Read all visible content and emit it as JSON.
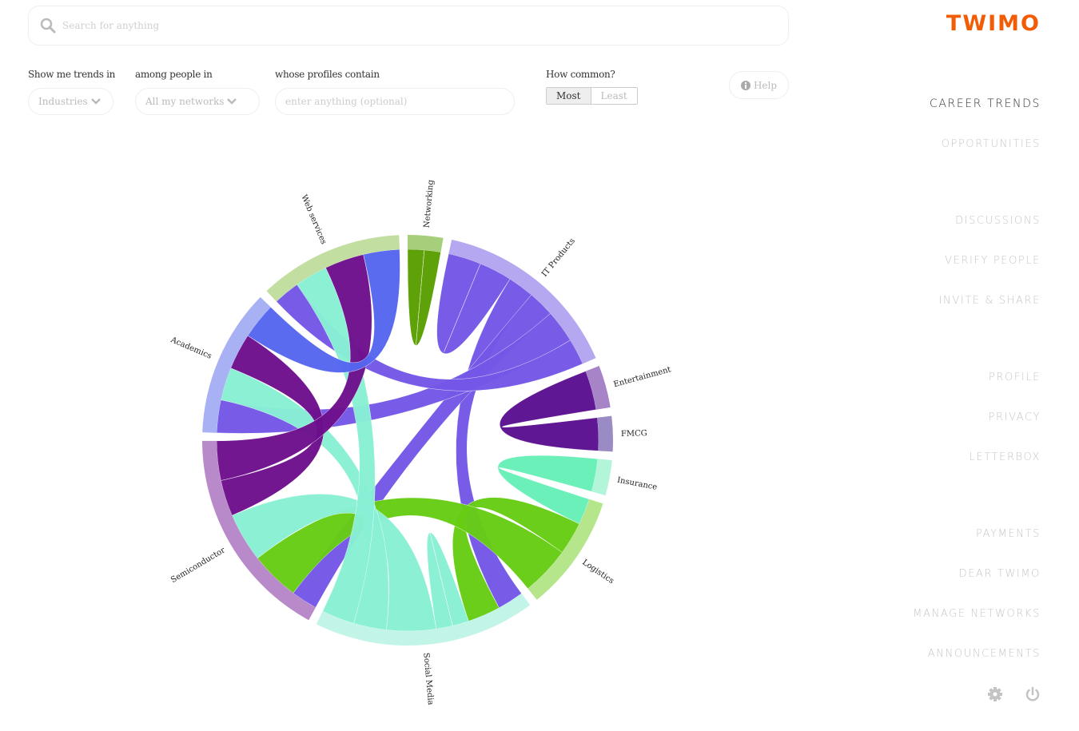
{
  "search": {
    "placeholder": "Search for anything",
    "icon": "search-icon"
  },
  "filters": {
    "trends_label": "Show me trends in",
    "trends_value": "Industries",
    "people_label": "among people in",
    "people_value": "All my networks",
    "profiles_label": "whose profiles contain",
    "profiles_placeholder": "enter anything (optional)",
    "common_label": "How common?",
    "common_options": [
      "Most",
      "Least"
    ],
    "common_selected": "Most",
    "help_label": "Help"
  },
  "brand": {
    "logo": "twimo",
    "color": "#f25c05"
  },
  "nav": {
    "items": [
      "career trends",
      "opportunities",
      "discussions",
      "verify people",
      "invite & share",
      "profile",
      "privacy",
      "letterbox",
      "payments",
      "dear twimo",
      "manage networks",
      "announcements"
    ],
    "active": "career trends"
  },
  "footer_icons": [
    "gear-icon",
    "power-icon"
  ],
  "chart_data": {
    "type": "chord",
    "groups": [
      {
        "name": "Networking",
        "value": 10,
        "color": "#5a9e00",
        "arc": "#a5cf7a"
      },
      {
        "name": "IT Products",
        "value": 54,
        "color": "#7457e6",
        "arc": "#b5a8f0"
      },
      {
        "name": "Entertainment",
        "value": 12,
        "color": "#5b0f8f",
        "arc": "#a783c7"
      },
      {
        "name": "FMCG",
        "value": 10,
        "color": "#5e0d8c",
        "arc": "#9a8bc4"
      },
      {
        "name": "Insurance",
        "value": 10,
        "color": "#66f0b8",
        "arc": "#b2f5d9"
      },
      {
        "name": "Logistics",
        "value": 33,
        "color": "#66cc14",
        "arc": "#b5e68c"
      },
      {
        "name": "Social Media",
        "value": 63,
        "color": "#88f0d4",
        "arc": "#c2f5e8"
      },
      {
        "name": "Semiconductor",
        "value": 61,
        "color": "#6d0f8c",
        "arc": "#b98ac9"
      },
      {
        "name": "Academics",
        "value": 42,
        "color": "#5566f0",
        "arc": "#a9b1f5"
      },
      {
        "name": "Web services",
        "value": 41,
        "color": "#5566f0",
        "arc": "#c2dea0"
      }
    ],
    "chords": [
      {
        "source": "Networking",
        "target": "Networking",
        "sv": 5,
        "tv": 5,
        "color": "#5a9e00"
      },
      {
        "source": "IT Products",
        "target": "IT Products",
        "sv": 10,
        "tv": 10,
        "color": "#7457e6"
      },
      {
        "source": "IT Products",
        "target": "Social Media",
        "sv": 8,
        "tv": 8,
        "color": "#7457e6"
      },
      {
        "source": "IT Products",
        "target": "Semiconductor",
        "sv": 8,
        "tv": 8,
        "color": "#7457e6"
      },
      {
        "source": "IT Products",
        "target": "Academics",
        "sv": 10,
        "tv": 10,
        "color": "#7457e6"
      },
      {
        "source": "IT Products",
        "target": "Web services",
        "sv": 8,
        "tv": 8,
        "color": "#7457e6"
      },
      {
        "source": "Entertainment",
        "target": "FMCG",
        "sv": 12,
        "tv": 10,
        "color": "#5b0f8f"
      },
      {
        "source": "Insurance",
        "target": "Logistics",
        "sv": 10,
        "tv": 8,
        "color": "#66f0b8"
      },
      {
        "source": "Logistics",
        "target": "Social Media",
        "sv": 10,
        "tv": 10,
        "color": "#66cc14"
      },
      {
        "source": "Logistics",
        "target": "Semiconductor",
        "sv": 15,
        "tv": 15,
        "color": "#66cc14"
      },
      {
        "source": "Social Media",
        "target": "Social Media",
        "sv": 5,
        "tv": 5,
        "color": "#88f0d4"
      },
      {
        "source": "Social Media",
        "target": "Semiconductor",
        "sv": 15,
        "tv": 15,
        "color": "#88f0d4"
      },
      {
        "source": "Social Media",
        "target": "Academics",
        "sv": 10,
        "tv": 10,
        "color": "#88f0d4"
      },
      {
        "source": "Social Media",
        "target": "Web services",
        "sv": 10,
        "tv": 10,
        "color": "#88f0d4"
      },
      {
        "source": "Semiconductor",
        "target": "Academics",
        "sv": 11,
        "tv": 11,
        "color": "#6d0f8c"
      },
      {
        "source": "Semiconductor",
        "target": "Web services",
        "sv": 12,
        "tv": 12,
        "color": "#6d0f8c"
      },
      {
        "source": "Academics",
        "target": "Web services",
        "sv": 11,
        "tv": 11,
        "color": "#5566f0"
      }
    ]
  }
}
